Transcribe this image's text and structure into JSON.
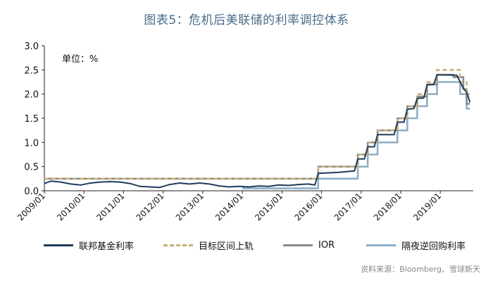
{
  "chart_data": {
    "type": "line",
    "title": "图表5：危机后美联储的利率调控体系",
    "unit_label": "单位：%",
    "ylim": [
      0,
      3.0
    ],
    "y_ticks": [
      "0.0",
      "0.5",
      "1.0",
      "1.5",
      "2.0",
      "2.5",
      "3.0"
    ],
    "x_ticks": [
      "2009/01",
      "2010/01",
      "2011/01",
      "2012/01",
      "2013/01",
      "2014/01",
      "2015/01",
      "2016/01",
      "2017/01",
      "2018/01",
      "2019/01"
    ],
    "x_range": [
      "2009-01",
      "2019-11"
    ],
    "grid": false,
    "legend_position": "bottom",
    "series": [
      {
        "name": "联邦基金利率",
        "color": "#1f3d5c",
        "style": "solid",
        "points": [
          [
            "2009-01",
            0.15
          ],
          [
            "2009-03",
            0.2
          ],
          [
            "2009-06",
            0.18
          ],
          [
            "2009-09",
            0.14
          ],
          [
            "2009-12",
            0.12
          ],
          [
            "2010-03",
            0.16
          ],
          [
            "2010-06",
            0.18
          ],
          [
            "2010-09",
            0.19
          ],
          [
            "2010-12",
            0.18
          ],
          [
            "2011-03",
            0.15
          ],
          [
            "2011-06",
            0.09
          ],
          [
            "2011-09",
            0.08
          ],
          [
            "2011-12",
            0.07
          ],
          [
            "2012-03",
            0.13
          ],
          [
            "2012-06",
            0.16
          ],
          [
            "2012-09",
            0.14
          ],
          [
            "2012-12",
            0.16
          ],
          [
            "2013-03",
            0.14
          ],
          [
            "2013-06",
            0.1
          ],
          [
            "2013-09",
            0.08
          ],
          [
            "2013-12",
            0.09
          ],
          [
            "2014-03",
            0.08
          ],
          [
            "2014-06",
            0.1
          ],
          [
            "2014-09",
            0.09
          ],
          [
            "2014-12",
            0.12
          ],
          [
            "2015-03",
            0.11
          ],
          [
            "2015-06",
            0.13
          ],
          [
            "2015-09",
            0.14
          ],
          [
            "2015-11",
            0.12
          ],
          [
            "2015-12",
            0.36
          ],
          [
            "2016-06",
            0.38
          ],
          [
            "2016-11",
            0.41
          ],
          [
            "2016-12",
            0.66
          ],
          [
            "2017-02",
            0.66
          ],
          [
            "2017-03",
            0.91
          ],
          [
            "2017-05",
            0.91
          ],
          [
            "2017-06",
            1.16
          ],
          [
            "2017-11",
            1.16
          ],
          [
            "2017-12",
            1.42
          ],
          [
            "2018-02",
            1.42
          ],
          [
            "2018-03",
            1.69
          ],
          [
            "2018-05",
            1.7
          ],
          [
            "2018-06",
            1.91
          ],
          [
            "2018-08",
            1.92
          ],
          [
            "2018-09",
            2.19
          ],
          [
            "2018-11",
            2.2
          ],
          [
            "2018-12",
            2.4
          ],
          [
            "2019-06",
            2.39
          ],
          [
            "2019-08",
            2.12
          ],
          [
            "2019-09",
            2.04
          ],
          [
            "2019-10",
            1.83
          ]
        ]
      },
      {
        "name": "目标区间上轨",
        "color": "#c8b07a",
        "style": "dashed",
        "points": [
          [
            "2009-01",
            0.25
          ],
          [
            "2015-12",
            0.25
          ],
          [
            "2015-12",
            0.5
          ],
          [
            "2016-12",
            0.5
          ],
          [
            "2016-12",
            0.75
          ],
          [
            "2017-03",
            0.75
          ],
          [
            "2017-03",
            1.0
          ],
          [
            "2017-06",
            1.0
          ],
          [
            "2017-06",
            1.25
          ],
          [
            "2017-12",
            1.25
          ],
          [
            "2017-12",
            1.5
          ],
          [
            "2018-03",
            1.5
          ],
          [
            "2018-03",
            1.75
          ],
          [
            "2018-06",
            1.75
          ],
          [
            "2018-06",
            2.0
          ],
          [
            "2018-09",
            2.0
          ],
          [
            "2018-09",
            2.25
          ],
          [
            "2018-12",
            2.25
          ],
          [
            "2018-12",
            2.5
          ],
          [
            "2019-07",
            2.5
          ],
          [
            "2019-07",
            2.25
          ],
          [
            "2019-09",
            2.25
          ],
          [
            "2019-09",
            2.0
          ],
          [
            "2019-10",
            2.0
          ]
        ]
      },
      {
        "name": "IOR",
        "color": "#8a8a8a",
        "style": "solid",
        "points": [
          [
            "2009-01",
            0.25
          ],
          [
            "2015-12",
            0.25
          ],
          [
            "2015-12",
            0.5
          ],
          [
            "2016-12",
            0.5
          ],
          [
            "2016-12",
            0.75
          ],
          [
            "2017-03",
            0.75
          ],
          [
            "2017-03",
            1.0
          ],
          [
            "2017-06",
            1.0
          ],
          [
            "2017-06",
            1.25
          ],
          [
            "2017-12",
            1.25
          ],
          [
            "2017-12",
            1.5
          ],
          [
            "2018-03",
            1.5
          ],
          [
            "2018-03",
            1.75
          ],
          [
            "2018-06",
            1.75
          ],
          [
            "2018-06",
            1.95
          ],
          [
            "2018-09",
            1.95
          ],
          [
            "2018-09",
            2.2
          ],
          [
            "2018-12",
            2.2
          ],
          [
            "2018-12",
            2.4
          ],
          [
            "2019-05",
            2.4
          ],
          [
            "2019-05",
            2.35
          ],
          [
            "2019-08",
            2.35
          ],
          [
            "2019-08",
            2.1
          ],
          [
            "2019-09",
            2.1
          ],
          [
            "2019-09",
            1.8
          ],
          [
            "2019-10",
            1.8
          ]
        ]
      },
      {
        "name": "隔夜逆回购利率",
        "color": "#8faec8",
        "style": "solid",
        "points": [
          [
            "2014-01",
            0.05
          ],
          [
            "2015-12",
            0.05
          ],
          [
            "2015-12",
            0.25
          ],
          [
            "2016-12",
            0.25
          ],
          [
            "2016-12",
            0.5
          ],
          [
            "2017-03",
            0.5
          ],
          [
            "2017-03",
            0.75
          ],
          [
            "2017-06",
            0.75
          ],
          [
            "2017-06",
            1.0
          ],
          [
            "2017-12",
            1.0
          ],
          [
            "2017-12",
            1.25
          ],
          [
            "2018-03",
            1.25
          ],
          [
            "2018-03",
            1.5
          ],
          [
            "2018-06",
            1.5
          ],
          [
            "2018-06",
            1.75
          ],
          [
            "2018-09",
            1.75
          ],
          [
            "2018-09",
            2.0
          ],
          [
            "2018-12",
            2.0
          ],
          [
            "2018-12",
            2.25
          ],
          [
            "2019-07",
            2.25
          ],
          [
            "2019-07",
            2.0
          ],
          [
            "2019-09",
            2.0
          ],
          [
            "2019-09",
            1.7
          ],
          [
            "2019-10",
            1.7
          ]
        ]
      }
    ]
  },
  "source": "资料来源：Bloomberg、雪球新天"
}
